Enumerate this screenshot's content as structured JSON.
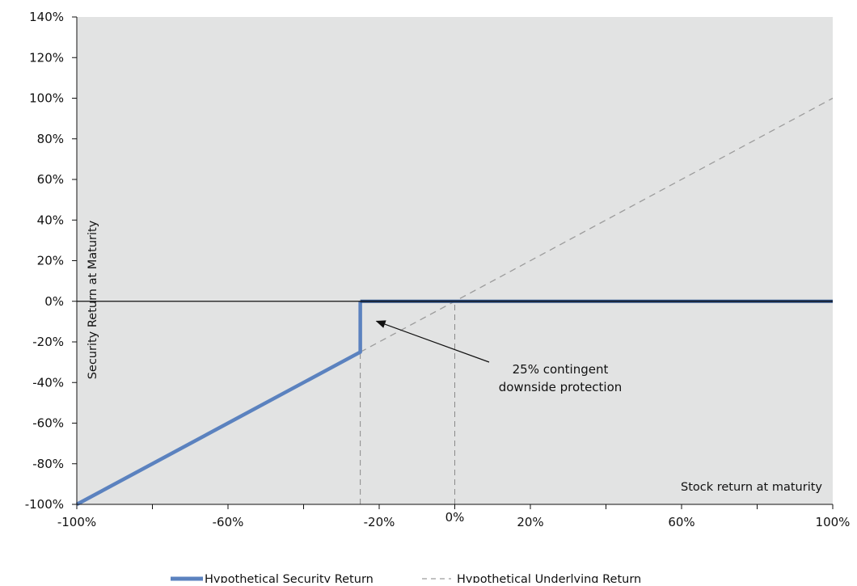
{
  "chart_data": {
    "type": "line",
    "title": "",
    "xlabel": "Stock return at maturity",
    "ylabel": "Security Return at Maturity",
    "xlim": [
      -100,
      100
    ],
    "ylim": [
      -100,
      140
    ],
    "grid": false,
    "x_ticks": [
      {
        "value": -100,
        "label": "-100%"
      },
      {
        "value": -60,
        "label": "-60%"
      },
      {
        "value": -20,
        "label": "-20%"
      },
      {
        "value": 0,
        "label": "0%"
      },
      {
        "value": 20,
        "label": "20%"
      },
      {
        "value": 60,
        "label": "60%"
      },
      {
        "value": 100,
        "label": "100%"
      }
    ],
    "y_ticks": [
      {
        "value": 140,
        "label": "140%"
      },
      {
        "value": 120,
        "label": "120%"
      },
      {
        "value": 100,
        "label": "100%"
      },
      {
        "value": 80,
        "label": "80%"
      },
      {
        "value": 60,
        "label": "60%"
      },
      {
        "value": 40,
        "label": "40%"
      },
      {
        "value": 20,
        "label": "20%"
      },
      {
        "value": 0,
        "label": "0%"
      },
      {
        "value": -20,
        "label": "-20%"
      },
      {
        "value": -40,
        "label": "-40%"
      },
      {
        "value": -60,
        "label": "-60%"
      },
      {
        "value": -80,
        "label": "-80%"
      },
      {
        "value": -100,
        "label": "-100%"
      }
    ],
    "series": [
      {
        "name": "Hypothetical Security Return",
        "style": "solid",
        "color": "#5b82bf",
        "points": [
          {
            "x": -100,
            "y": -100
          },
          {
            "x": -25,
            "y": -25
          },
          {
            "x": -25,
            "y": 0
          },
          {
            "x": 100,
            "y": 0
          }
        ]
      },
      {
        "name": "Hypothetical Underlying Return",
        "style": "dashed",
        "color": "#9c9c9c",
        "points": [
          {
            "x": -25,
            "y": -25
          },
          {
            "x": 100,
            "y": 100
          }
        ]
      }
    ],
    "reference_lines": [
      {
        "axis": "x",
        "value": -25,
        "from_y": -100,
        "to_y": 0,
        "style": "dashed"
      },
      {
        "axis": "x",
        "value": 0,
        "from_y": -100,
        "to_y": 0,
        "style": "dashed"
      },
      {
        "axis": "y",
        "value": 0,
        "style": "solid"
      }
    ],
    "annotations": [
      {
        "lines": [
          "25% contingent",
          "downside protection"
        ],
        "arrow_to": {
          "x": -25,
          "y": -5
        }
      }
    ],
    "legend_position": "bottom-center",
    "colors": {
      "plot_background": "#e2e3e3",
      "security_line": "#5b82bf",
      "security_flat": "#2c4f86",
      "underlying_line": "#9c9c9c",
      "zero_line": "#111111"
    }
  }
}
